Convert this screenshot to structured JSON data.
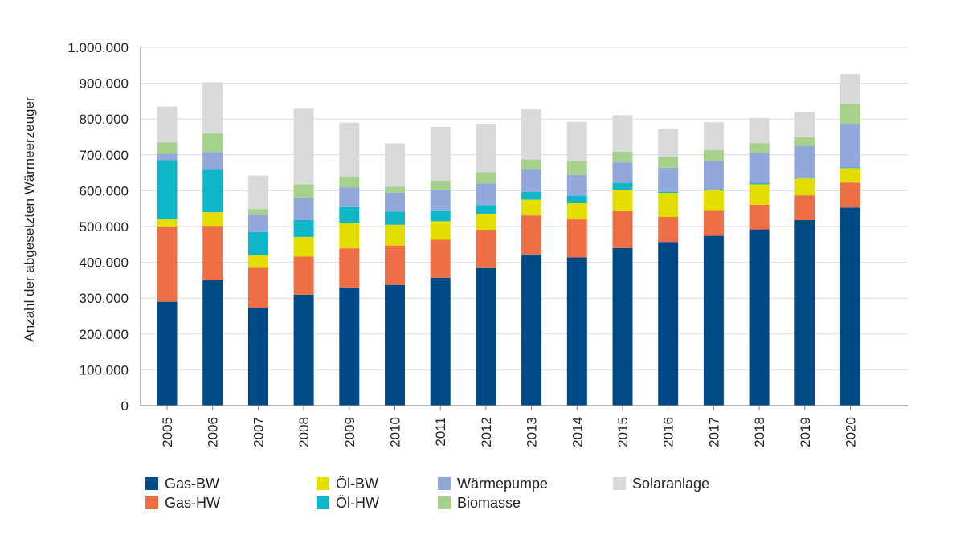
{
  "chart_data": {
    "type": "bar",
    "stacked": true,
    "title": "",
    "xlabel": "",
    "ylabel": "Anzahl der abgesetzten Wärmeerzeuger",
    "ylim": [
      0,
      1000000
    ],
    "yticks": [
      0,
      100000,
      200000,
      300000,
      400000,
      500000,
      600000,
      700000,
      800000,
      900000,
      1000000
    ],
    "ytick_labels": [
      "0",
      "100.000",
      "200.000",
      "300.000",
      "400.000",
      "500.000",
      "600.000",
      "700.000",
      "800.000",
      "900.000",
      "1.000.000"
    ],
    "grid": true,
    "legend_position": "bottom",
    "categories": [
      "2005",
      "2006",
      "2007",
      "2008",
      "2009",
      "2010",
      "2011",
      "2012",
      "2013",
      "2014",
      "2015",
      "2016",
      "2017",
      "2018",
      "2019",
      "2020"
    ],
    "series": [
      {
        "name": "Gas-BW",
        "color": "#004b87",
        "values": [
          290000,
          350000,
          273000,
          310000,
          330000,
          337000,
          357000,
          384000,
          422000,
          414000,
          440000,
          457000,
          474000,
          492000,
          518000,
          553000
        ]
      },
      {
        "name": "Gas-HW",
        "color": "#ee6f45",
        "values": [
          210000,
          152000,
          112000,
          106000,
          109000,
          110000,
          106000,
          107000,
          109000,
          106000,
          103000,
          70000,
          70000,
          69000,
          69000,
          70000
        ]
      },
      {
        "name": "Öl-BW",
        "color": "#e3dd00",
        "values": [
          20000,
          38000,
          35000,
          55000,
          72000,
          58000,
          52000,
          44000,
          44000,
          45000,
          59000,
          67000,
          57000,
          57000,
          47000,
          40000
        ]
      },
      {
        "name": "Öl-HW",
        "color": "#0fb6c8",
        "values": [
          165000,
          118000,
          65000,
          47000,
          43000,
          37000,
          28000,
          25000,
          22000,
          21000,
          20000,
          3000,
          3000,
          3000,
          3000,
          2000
        ]
      },
      {
        "name": "Wärmepumpe",
        "color": "#93a8da",
        "values": [
          18000,
          50000,
          47000,
          62000,
          55000,
          53000,
          58000,
          60000,
          62000,
          58000,
          57000,
          67000,
          80000,
          85000,
          88000,
          122000
        ]
      },
      {
        "name": "Biomasse",
        "color": "#a6d18a",
        "values": [
          32000,
          52000,
          17000,
          38000,
          30000,
          16000,
          27000,
          32000,
          28000,
          38000,
          30000,
          30000,
          29000,
          27000,
          24000,
          55000
        ]
      },
      {
        "name": "Solaranlage",
        "color": "#d9d9d9",
        "values": [
          100000,
          143000,
          93000,
          211000,
          151000,
          121000,
          150000,
          135000,
          140000,
          110000,
          102000,
          80000,
          78000,
          70000,
          70000,
          84000
        ]
      }
    ]
  }
}
